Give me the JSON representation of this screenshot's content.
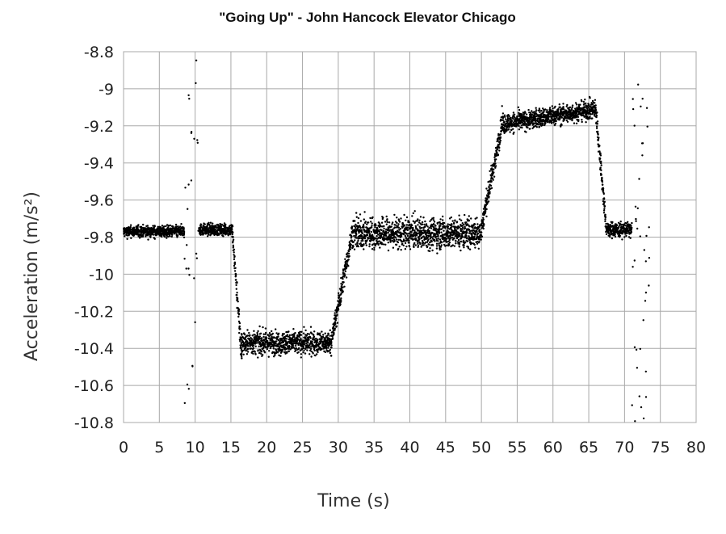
{
  "chart_data": {
    "type": "scatter",
    "title": "\"Going Up\" - John Hancock Elevator Chicago",
    "xlabel": "Time (s)",
    "ylabel": "Acceleration (m/s²)",
    "xlim": [
      0,
      80
    ],
    "ylim": [
      -10.8,
      -8.8
    ],
    "xticks": [
      0,
      5,
      10,
      15,
      20,
      25,
      30,
      35,
      40,
      45,
      50,
      55,
      60,
      65,
      70,
      75,
      80
    ],
    "xtick_labels": [
      "0",
      "5",
      "10",
      "15",
      "20",
      "25",
      "30",
      "35",
      "40",
      "45",
      "50",
      "55",
      "60",
      "65",
      "70",
      "75",
      "80"
    ],
    "yticks": [
      -8.8,
      -9,
      -9.2,
      -9.4,
      -9.6,
      -9.8,
      -10,
      -10.2,
      -10.4,
      -10.6,
      -10.8
    ],
    "ytick_labels": [
      "-8.8",
      "-9",
      "-9.2",
      "-9.4",
      "-9.6",
      "-9.8",
      "-10",
      "-10.2",
      "-10.4",
      "-10.6",
      "-10.8"
    ],
    "grid": true,
    "marker_color": "#000000",
    "segments": [
      {
        "x_start": 0,
        "x_end": 8.5,
        "mean": -9.77,
        "spread": 0.03
      },
      {
        "x_start": 8.5,
        "x_end": 10.5,
        "mean": -9.8,
        "spread": 0.75,
        "note_hidden": ""
      },
      {
        "x_start": 10.5,
        "x_end": 15.2,
        "mean": -9.76,
        "spread": 0.03
      },
      {
        "x_start": 15.2,
        "x_end": 16.5,
        "mean_start": -9.77,
        "mean_end": -10.45,
        "spread": 0.05
      },
      {
        "x_start": 16.5,
        "x_end": 29,
        "mean": -10.37,
        "spread": 0.06
      },
      {
        "x_start": 29,
        "x_end": 32,
        "mean_start": -10.37,
        "mean_end": -9.77,
        "spread": 0.06
      },
      {
        "x_start": 32,
        "x_end": 50,
        "mean": -9.78,
        "spread": 0.08
      },
      {
        "x_start": 50,
        "x_end": 53,
        "mean_start": -9.75,
        "mean_end": -9.17,
        "spread": 0.06
      },
      {
        "x_start": 53,
        "x_end": 66,
        "mean_start": -9.19,
        "mean_end": -9.11,
        "spread": 0.05
      },
      {
        "x_start": 66,
        "x_end": 67.5,
        "mean_start": -9.12,
        "mean_end": -9.77,
        "spread": 0.05
      },
      {
        "x_start": 67.5,
        "x_end": 71,
        "mean": -9.76,
        "spread": 0.04
      },
      {
        "x_start": 71,
        "x_end": 73.5,
        "mean": -9.8,
        "spread": 0.75
      }
    ]
  }
}
